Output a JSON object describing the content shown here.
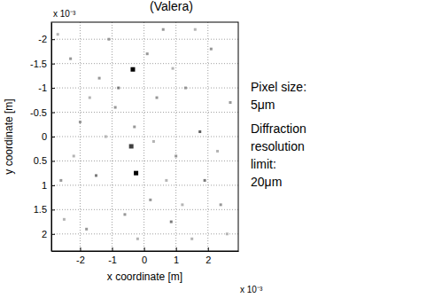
{
  "chart_data": {
    "type": "scatter",
    "title": "(Valera)",
    "x_label": "x coordinate [m]",
    "y_label": "y coordinate [m]",
    "x_multiplier": "x 10⁻³",
    "y_multiplier": "x 10⁻³",
    "notes": [
      "Pixel size:",
      "5μm",
      "Diffraction",
      "resolution",
      "limit:",
      "20μm"
    ],
    "xlim": [
      -2.9,
      2.95
    ],
    "ylim": [
      -2.35,
      2.35
    ],
    "xticks": [
      -2,
      -1,
      0,
      1,
      2
    ],
    "yticks": [
      -2,
      -1.5,
      -1,
      -0.5,
      0,
      0.5,
      1,
      1.5,
      2
    ],
    "grid": true,
    "marker": "square",
    "x": [
      -0.35,
      -0.25,
      -0.4,
      -1.5,
      -2.3,
      -2.0,
      1.75,
      0.85,
      2.4,
      1.3,
      2.1,
      0.6,
      -1.1,
      -2.6,
      -1.8,
      0.2,
      1.9,
      -0.9,
      0.4,
      2.7,
      -2.7,
      1.0,
      -0.6,
      0.1,
      2.3,
      -1.4,
      -2.2,
      1.5,
      -0.2,
      0.9,
      2.6,
      -1.2,
      0.7,
      -2.5,
      1.6,
      -0.8,
      -0.3,
      0.3,
      -1.7,
      1.2
    ],
    "y": [
      -1.38,
      0.75,
      0.2,
      0.8,
      -1.6,
      -0.3,
      -0.1,
      1.75,
      1.4,
      -1.0,
      -1.8,
      -2.2,
      -2.0,
      0.9,
      1.9,
      1.3,
      0.9,
      -0.6,
      -0.8,
      -0.7,
      -2.1,
      0.4,
      1.6,
      -1.7,
      0.3,
      -1.2,
      0.4,
      2.1,
      2.1,
      -1.4,
      2.0,
      0.0,
      0.9,
      1.7,
      -2.2,
      -1.0,
      -0.2,
      0.1,
      -0.8,
      1.4
    ],
    "intensity": [
      1,
      1,
      0.8,
      0.6,
      0.5,
      0.5,
      0.7,
      0.6,
      0.5,
      0.5,
      0.5,
      0.5,
      0.5,
      0.5,
      0.5,
      0.5,
      0.6,
      0.5,
      0.5,
      0.5,
      0.4,
      0.5,
      0.5,
      0.5,
      0.4,
      0.5,
      0.4,
      0.4,
      0.4,
      0.4,
      0.4,
      0.4,
      0.4,
      0.4,
      0.4,
      0.6,
      0.5,
      0.4,
      0.4,
      0.4
    ]
  }
}
